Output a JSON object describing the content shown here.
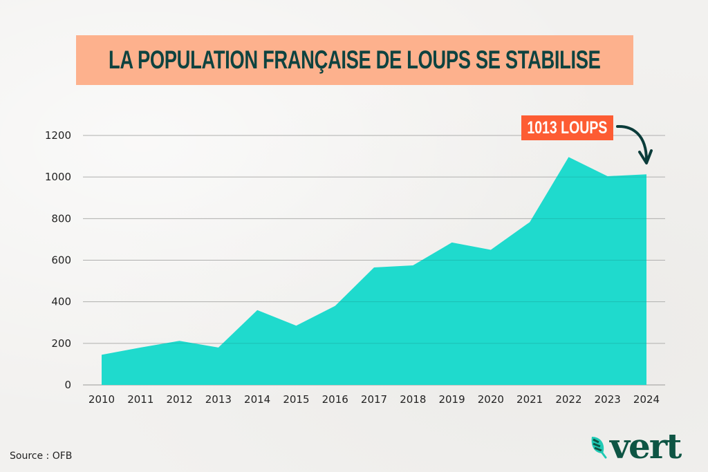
{
  "title": "LA POPULATION FRANÇAISE DE LOUPS SE STABILISE",
  "callout": {
    "label": "1013 LOUPS",
    "icon": "curved-arrow-down-icon"
  },
  "source": "Source : OFB",
  "logo": {
    "text": "vert",
    "icon": "leaf-icon"
  },
  "colors": {
    "area_fill": "#1fdacd",
    "title_bg": "#fdb18d",
    "title_text": "#0e4340",
    "callout_bg": "#fd5c33",
    "logo_green": "#0e5544",
    "gridline": "#c8c8c6"
  },
  "chart_data": {
    "type": "area",
    "title": "LA POPULATION FRANÇAISE DE LOUPS SE STABILISE",
    "xlabel": "",
    "ylabel": "",
    "x": [
      "2010",
      "2011",
      "2012",
      "2013",
      "2014",
      "2015",
      "2016",
      "2017",
      "2018",
      "2019",
      "2020",
      "2021",
      "2022",
      "2023",
      "2024"
    ],
    "series": [
      {
        "name": "Loups",
        "values": [
          145,
          180,
          212,
          180,
          360,
          285,
          380,
          565,
          575,
          685,
          650,
          783,
          1096,
          1004,
          1013
        ]
      }
    ],
    "yticks": [
      0,
      200,
      400,
      600,
      800,
      1000,
      1200
    ],
    "ylim": [
      0,
      1200
    ],
    "grid": true,
    "legend": "none",
    "annotations": [
      {
        "text": "1013 LOUPS",
        "x": "2024",
        "value": 1013
      }
    ]
  }
}
